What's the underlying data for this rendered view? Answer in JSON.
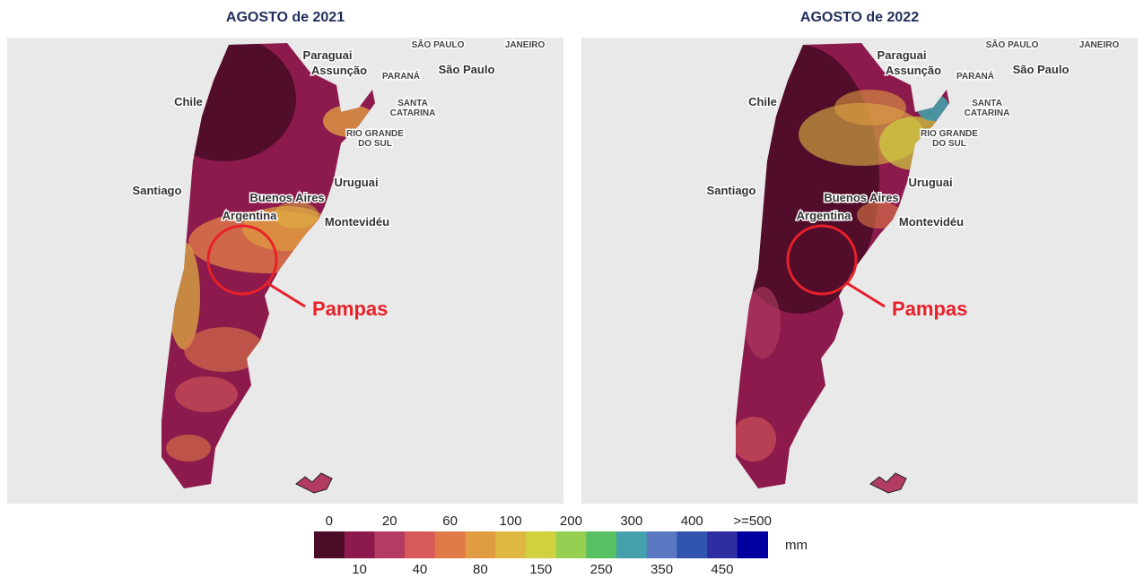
{
  "maps": [
    {
      "title": "AGOSTO de 2021"
    },
    {
      "title": "AGOSTO de 2022"
    }
  ],
  "places": [
    {
      "lines": [
        "SÃO PAULO"
      ],
      "caps": true
    },
    {
      "lines": [
        "JANEIRO"
      ],
      "caps": true
    },
    {
      "lines": [
        "Paraguai"
      ]
    },
    {
      "lines": [
        "Assunção"
      ]
    },
    {
      "lines": [
        "PARANÁ"
      ],
      "caps": true
    },
    {
      "lines": [
        "São Paulo"
      ]
    },
    {
      "lines": [
        "SANTA",
        "CATARINA"
      ],
      "caps": true
    },
    {
      "lines": [
        "RIO GRANDE",
        "DO SUL"
      ],
      "caps": true
    },
    {
      "lines": [
        "Chile"
      ]
    },
    {
      "lines": [
        "Santiago"
      ]
    },
    {
      "lines": [
        "Uruguai"
      ]
    },
    {
      "lines": [
        "Buenos Aires"
      ]
    },
    {
      "lines": [
        "Argentina"
      ]
    },
    {
      "lines": [
        "Montevidéu"
      ]
    }
  ],
  "annotation": "Pampas",
  "legend": {
    "top_labels": [
      "0",
      "20",
      "60",
      "100",
      "200",
      "300",
      "400",
      ">=500"
    ],
    "bottom_labels": [
      "10",
      "40",
      "80",
      "150",
      "250",
      "350",
      "450"
    ],
    "unit": "mm",
    "colors": [
      "#4a0c26",
      "#8c1a4c",
      "#b23c62",
      "#d65a5a",
      "#e07a48",
      "#e09c42",
      "#dfb842",
      "#cfd23e",
      "#96d052",
      "#58bf62",
      "#44a0aa",
      "#5a78c2",
      "#3054b0",
      "#2e2ea2",
      "#0000a0"
    ]
  }
}
